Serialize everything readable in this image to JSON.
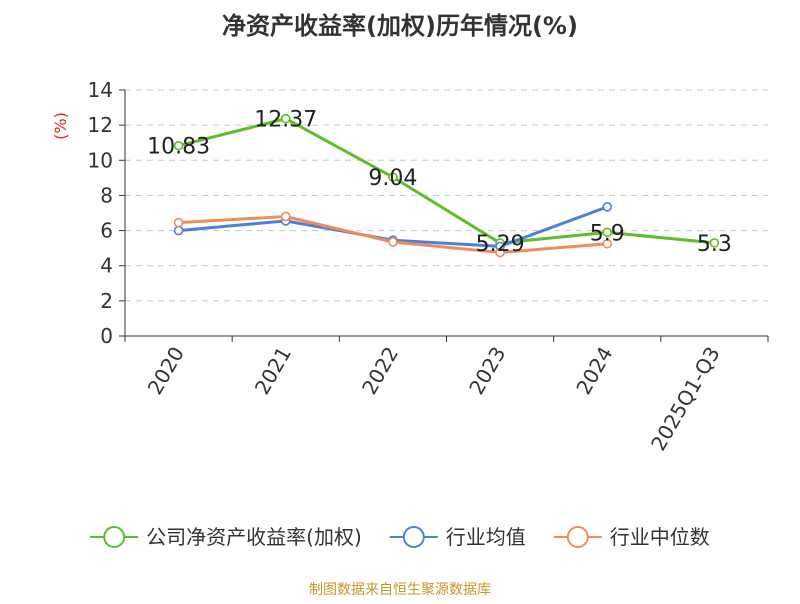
{
  "chart_data": {
    "type": "line",
    "title": "净资产收益率(加权)历年情况(%)",
    "ylabel": "(%)",
    "xlabel": "",
    "categories": [
      "2020",
      "2021",
      "2022",
      "2023",
      "2024",
      "2025Q1-Q3"
    ],
    "ylim": [
      0,
      14
    ],
    "yticks": [
      0,
      2,
      4,
      6,
      8,
      10,
      12,
      14
    ],
    "grid": true,
    "legend_position": "bottom",
    "series": [
      {
        "name": "公司净资产收益率(加权)",
        "color": "#5cbf2a",
        "values": [
          10.83,
          12.37,
          9.04,
          5.29,
          5.9,
          5.3
        ],
        "labels": [
          "10.83",
          "12.37",
          "9.04",
          "5.29",
          "5.9",
          "5.3"
        ]
      },
      {
        "name": "行业均值",
        "color": "#4f7fdc",
        "values": [
          6.0,
          6.55,
          5.45,
          5.1,
          7.35,
          null
        ]
      },
      {
        "name": "行业中位数",
        "color": "#f08c5a",
        "values": [
          6.45,
          6.8,
          5.35,
          4.75,
          5.25,
          null
        ]
      }
    ],
    "source": "制图数据来自恒生聚源数据库"
  }
}
